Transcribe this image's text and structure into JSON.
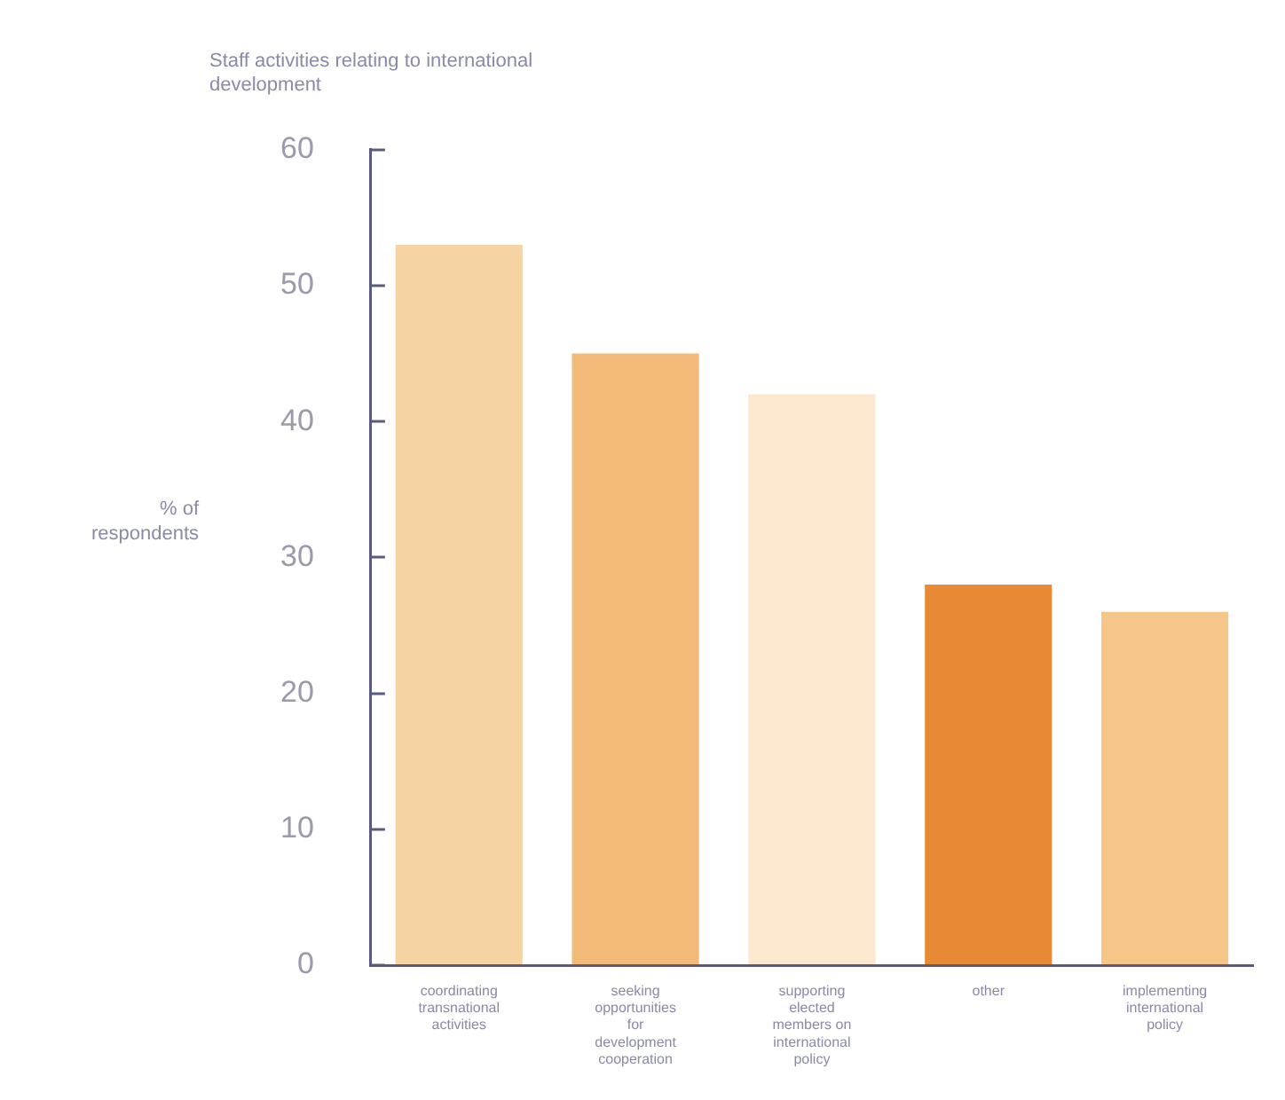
{
  "chart_data": {
    "type": "bar",
    "title": "Staff activities relating to international development",
    "ylabel": "% of respondents",
    "categories": [
      "coordinating transnational activities",
      "seeking opportunities for development cooperation",
      "supporting elected members on international policy",
      "other",
      "implementing international policy"
    ],
    "values": [
      53,
      45,
      42,
      28,
      26
    ],
    "colors": [
      "#f5d3a3",
      "#f2b978",
      "#fbe8cf",
      "#e88a35",
      "#f5c688"
    ],
    "ylim": [
      0,
      60
    ],
    "yticks": [
      0,
      10,
      20,
      30,
      40,
      50,
      60
    ],
    "grid": false,
    "legend": false
  }
}
